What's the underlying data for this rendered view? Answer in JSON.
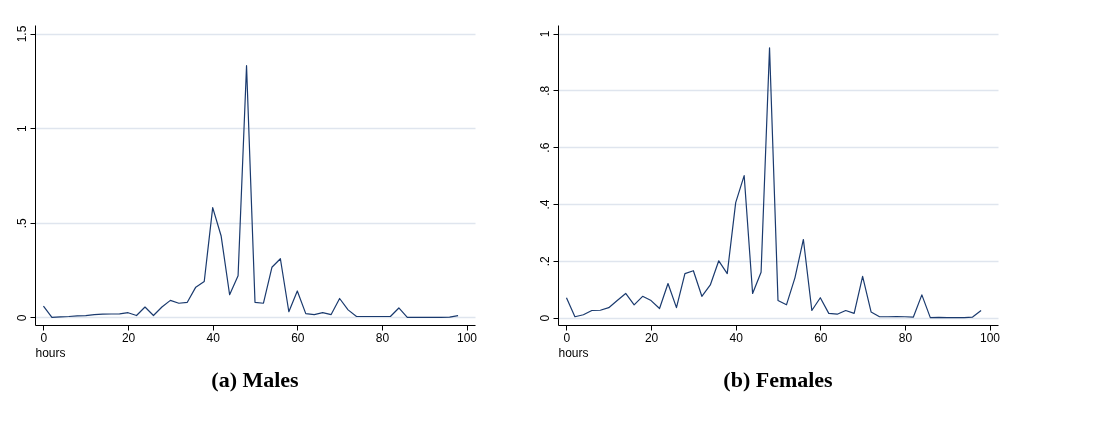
{
  "chart_data": [
    {
      "type": "line",
      "title": "(a) Males",
      "xlabel": "hours",
      "grid": "y",
      "line_style": "solid",
      "marker": "none",
      "x": [
        0,
        2,
        4,
        6,
        8,
        10,
        12,
        14,
        16,
        18,
        20,
        22,
        24,
        26,
        28,
        30,
        32,
        34,
        36,
        38,
        40,
        42,
        44,
        46,
        48,
        50,
        52,
        54,
        56,
        58,
        60,
        62,
        64,
        66,
        68,
        70,
        72,
        74,
        76,
        78,
        80,
        82,
        84,
        86,
        88,
        90,
        92,
        94,
        96,
        98
      ],
      "series": [
        {
          "color": "#1a3a6e",
          "values": [
            0.06,
            0.0,
            0.003,
            0.005,
            0.008,
            0.01,
            0.015,
            0.017,
            0.018,
            0.019,
            0.025,
            0.01,
            0.055,
            0.01,
            0.055,
            0.09,
            0.075,
            0.08,
            0.16,
            0.19,
            0.58,
            0.43,
            0.12,
            0.22,
            1.33,
            0.08,
            0.075,
            0.265,
            0.31,
            0.03,
            0.14,
            0.02,
            0.015,
            0.025,
            0.015,
            0.1,
            0.04,
            0.005,
            0.005,
            0.005,
            0.005,
            0.005,
            0.05,
            0.0,
            0.0,
            0.0,
            0.0,
            0.0,
            0.002,
            0.01
          ]
        }
      ],
      "xlim": [
        -2,
        102
      ],
      "xticks": [
        0,
        20,
        40,
        60,
        80,
        100
      ],
      "ylim": [
        -0.04,
        1.545
      ],
      "yticks": [
        0,
        {
          "value": 0.5,
          "label": ".5"
        },
        1,
        1.5
      ]
    },
    {
      "type": "line",
      "title": "(b) Females",
      "xlabel": "hours",
      "grid": "y",
      "line_style": "solid",
      "marker": "none",
      "x": [
        0,
        2,
        4,
        6,
        8,
        10,
        12,
        14,
        16,
        18,
        20,
        22,
        24,
        26,
        28,
        30,
        32,
        34,
        36,
        38,
        40,
        42,
        44,
        46,
        48,
        50,
        52,
        54,
        56,
        58,
        60,
        62,
        64,
        66,
        68,
        70,
        72,
        74,
        76,
        78,
        80,
        82,
        84,
        86,
        88,
        90,
        92,
        94,
        96,
        98
      ],
      "series": [
        {
          "color": "#1a3a6e",
          "values": [
            0.07,
            0.003,
            0.01,
            0.025,
            0.026,
            0.035,
            0.06,
            0.085,
            0.045,
            0.075,
            0.06,
            0.032,
            0.12,
            0.035,
            0.155,
            0.165,
            0.075,
            0.115,
            0.2,
            0.155,
            0.405,
            0.5,
            0.085,
            0.16,
            0.95,
            0.06,
            0.045,
            0.14,
            0.275,
            0.025,
            0.07,
            0.015,
            0.012,
            0.025,
            0.015,
            0.145,
            0.02,
            0.003,
            0.003,
            0.004,
            0.003,
            0.002,
            0.08,
            0.0,
            0.001,
            0.0,
            0.0,
            0.0,
            0.002,
            0.025
          ]
        }
      ],
      "xlim": [
        -2,
        102
      ],
      "xticks": [
        0,
        20,
        40,
        60,
        80,
        100
      ],
      "ylim": [
        -0.026,
        1.03
      ],
      "yticks": [
        0,
        {
          "value": 0.2,
          "label": ".2"
        },
        {
          "value": 0.4,
          "label": ".4"
        },
        {
          "value": 0.6,
          "label": ".6"
        },
        {
          "value": 0.8,
          "label": ".8"
        },
        1
      ]
    }
  ]
}
